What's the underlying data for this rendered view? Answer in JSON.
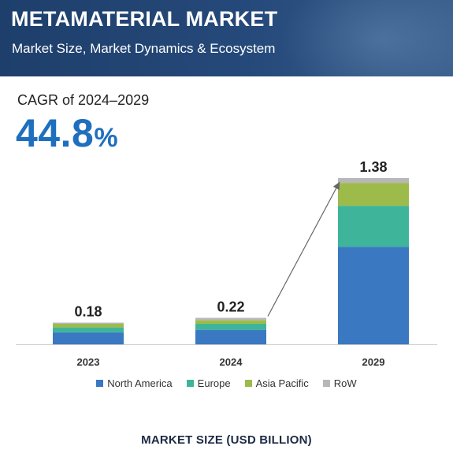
{
  "header": {
    "title": "METAMATERIAL MARKET",
    "subtitle": "Market Size, Market Dynamics & Ecosystem"
  },
  "cagr": {
    "label": "CAGR of 2024–2029",
    "value": "44.8",
    "unit": "%"
  },
  "chart_data": {
    "type": "bar",
    "stacked": true,
    "categories": [
      "2023",
      "2024",
      "2029"
    ],
    "totals": [
      "0.18",
      "0.22",
      "1.38"
    ],
    "series": [
      {
        "name": "North America",
        "color": "#3a78c2",
        "values": [
          0.1,
          0.12,
          0.81
        ]
      },
      {
        "name": "Europe",
        "color": "#3eb59a",
        "values": [
          0.04,
          0.05,
          0.34
        ]
      },
      {
        "name": "Asia Pacific",
        "color": "#9dbb4a",
        "values": [
          0.03,
          0.03,
          0.19
        ]
      },
      {
        "name": "RoW",
        "color": "#b7b7b7",
        "values": [
          0.01,
          0.02,
          0.04
        ]
      }
    ],
    "trend_arrow": {
      "from": "2024",
      "to": "2029"
    },
    "title": "MARKET SIZE (USD BILLION)",
    "xlabel": "",
    "ylabel": "",
    "ylim": [
      0,
      1.38
    ],
    "grid": false,
    "legend": "bottom"
  }
}
